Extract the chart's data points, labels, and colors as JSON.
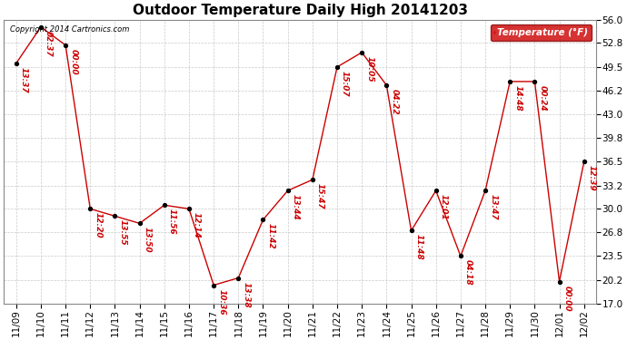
{
  "title": "Outdoor Temperature Daily High 20141203",
  "copyright_text": "Copyright 2014 Cartronics.com",
  "legend_label": "Temperature (°F)",
  "dates": [
    "11/09",
    "11/10",
    "11/11",
    "11/12",
    "11/13",
    "11/14",
    "11/15",
    "11/16",
    "11/17",
    "11/18",
    "11/19",
    "11/20",
    "11/21",
    "11/22",
    "11/23",
    "11/24",
    "11/25",
    "11/26",
    "11/27",
    "11/28",
    "11/29",
    "11/30",
    "12/01",
    "12/02"
  ],
  "values": [
    50.0,
    55.0,
    52.5,
    30.0,
    29.0,
    28.0,
    30.5,
    30.0,
    19.5,
    20.5,
    28.5,
    32.5,
    34.0,
    49.5,
    51.5,
    47.0,
    27.0,
    32.5,
    23.5,
    32.5,
    47.5,
    47.5,
    20.0,
    36.5
  ],
  "annotations": [
    "13:37",
    "02:37",
    "00:00",
    "12:20",
    "13:55",
    "13:50",
    "11:56",
    "12:14",
    "10:36",
    "13:38",
    "11:42",
    "13:44",
    "15:47",
    "15:07",
    "10:05",
    "04:22",
    "11:48",
    "12:01",
    "04:18",
    "13:47",
    "14:48",
    "00:24",
    "00:00",
    "12:39"
  ],
  "ylim": [
    17.0,
    56.0
  ],
  "yticks": [
    17.0,
    20.2,
    23.5,
    26.8,
    30.0,
    33.2,
    36.5,
    39.8,
    43.0,
    46.2,
    49.5,
    52.8,
    56.0
  ],
  "line_color": "#cc0000",
  "marker_color": "#000000",
  "annotation_color": "#cc0000",
  "background_color": "#ffffff",
  "grid_color": "#bbbbbb",
  "legend_bg": "#cc0000",
  "legend_text_color": "#ffffff",
  "title_fontsize": 11,
  "annotation_fontsize": 6.5,
  "tick_fontsize": 7.5,
  "copyright_fontsize": 6
}
